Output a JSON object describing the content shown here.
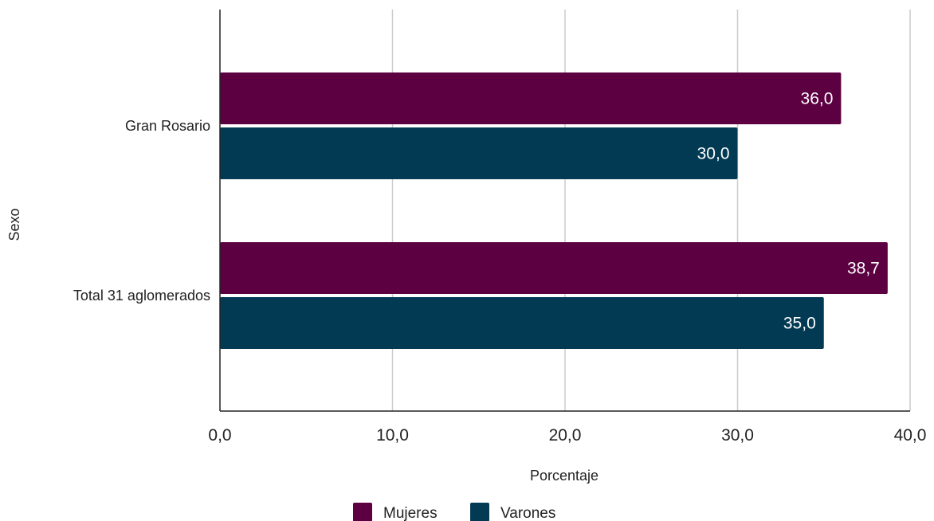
{
  "chart_data": {
    "type": "bar",
    "orientation": "horizontal",
    "categories": [
      "Gran Rosario",
      "Total 31 aglomerados"
    ],
    "series": [
      {
        "name": "Mujeres",
        "values": [
          36.0,
          38.7
        ],
        "labels": [
          "36,0",
          "38,7"
        ],
        "color": "#5c0042"
      },
      {
        "name": "Varones",
        "values": [
          30.0,
          35.0
        ],
        "labels": [
          "30,0",
          "35,0"
        ],
        "color": "#023a54"
      }
    ],
    "xlabel": "Porcentaje",
    "ylabel": "Sexo",
    "xlim": [
      0,
      40
    ],
    "ticks": [
      0,
      10,
      20,
      30,
      40
    ],
    "tick_labels": [
      "0,0",
      "10,0",
      "20,0",
      "30,0",
      "40,0"
    ],
    "grid": "vertical",
    "legend_position": "bottom"
  }
}
